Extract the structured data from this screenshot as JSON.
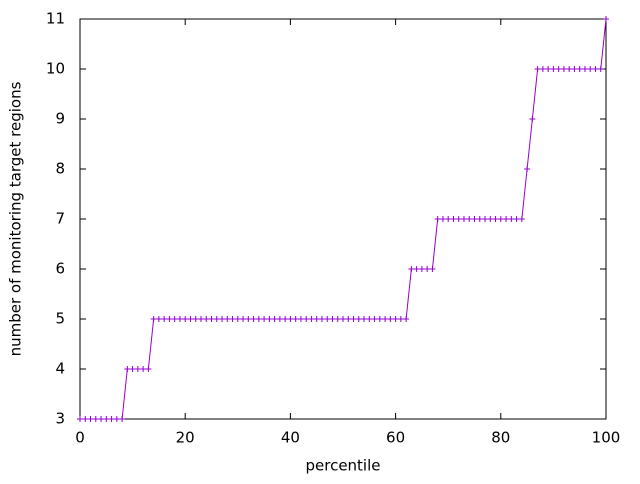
{
  "chart_data": {
    "type": "line",
    "xlabel": "percentile",
    "ylabel": "number of monitoring target regions",
    "x": [
      0,
      1,
      2,
      3,
      4,
      5,
      6,
      7,
      8,
      9,
      10,
      11,
      12,
      13,
      14,
      15,
      16,
      17,
      18,
      19,
      20,
      21,
      22,
      23,
      24,
      25,
      26,
      27,
      28,
      29,
      30,
      31,
      32,
      33,
      34,
      35,
      36,
      37,
      38,
      39,
      40,
      41,
      42,
      43,
      44,
      45,
      46,
      47,
      48,
      49,
      50,
      51,
      52,
      53,
      54,
      55,
      56,
      57,
      58,
      59,
      60,
      61,
      62,
      63,
      64,
      65,
      66,
      67,
      68,
      69,
      70,
      71,
      72,
      73,
      74,
      75,
      76,
      77,
      78,
      79,
      80,
      81,
      82,
      83,
      84,
      85,
      86,
      87,
      88,
      89,
      90,
      91,
      92,
      93,
      94,
      95,
      96,
      97,
      98,
      99,
      100
    ],
    "series": [
      {
        "color": "#9400d3",
        "marker": "+",
        "values": [
          3,
          3,
          3,
          3,
          3,
          3,
          3,
          3,
          3,
          4,
          4,
          4,
          4,
          4,
          5,
          5,
          5,
          5,
          5,
          5,
          5,
          5,
          5,
          5,
          5,
          5,
          5,
          5,
          5,
          5,
          5,
          5,
          5,
          5,
          5,
          5,
          5,
          5,
          5,
          5,
          5,
          5,
          5,
          5,
          5,
          5,
          5,
          5,
          5,
          5,
          5,
          5,
          5,
          5,
          5,
          5,
          5,
          5,
          5,
          5,
          5,
          5,
          5,
          6,
          6,
          6,
          6,
          6,
          7,
          7,
          7,
          7,
          7,
          7,
          7,
          7,
          7,
          7,
          7,
          7,
          7,
          7,
          7,
          7,
          7,
          8,
          9,
          10,
          10,
          10,
          10,
          10,
          10,
          10,
          10,
          10,
          10,
          10,
          10,
          10,
          11
        ]
      }
    ],
    "xlim": [
      0,
      100
    ],
    "ylim": [
      3,
      11
    ],
    "xticks": [
      0,
      20,
      40,
      60,
      80,
      100
    ],
    "yticks": [
      3,
      4,
      5,
      6,
      7,
      8,
      9,
      10,
      11
    ]
  }
}
